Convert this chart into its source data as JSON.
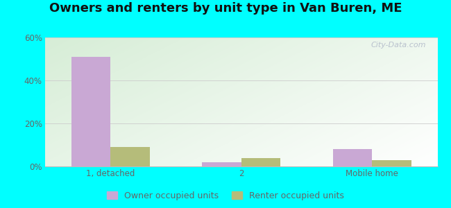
{
  "title": "Owners and renters by unit type in Van Buren, ME",
  "categories": [
    "1, detached",
    "2",
    "Mobile home"
  ],
  "owner_values": [
    51,
    2,
    8
  ],
  "renter_values": [
    9,
    4,
    3
  ],
  "owner_color": "#c9a8d4",
  "renter_color": "#b5bc7a",
  "ylim": [
    0,
    60
  ],
  "yticks": [
    0,
    20,
    40,
    60
  ],
  "ytick_labels": [
    "0%",
    "20%",
    "40%",
    "60%"
  ],
  "bar_width": 0.3,
  "background_color": "#00ffff",
  "title_fontsize": 13,
  "tick_fontsize": 8.5,
  "legend_fontsize": 9,
  "watermark": "City-Data.com"
}
